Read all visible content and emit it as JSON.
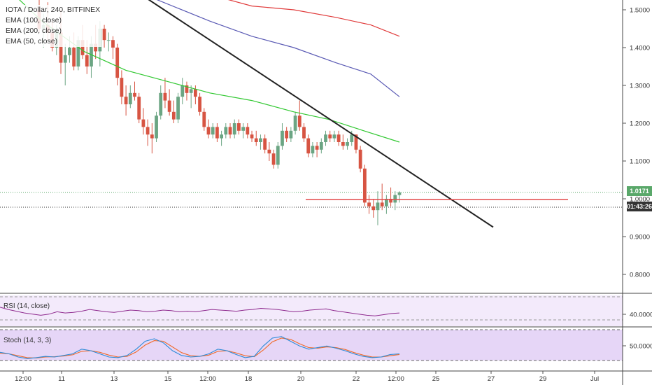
{
  "legend": {
    "symbol_line": "IOTA / Dollar, 240, BITFINEX",
    "ema100": "EMA (100, close)",
    "ema200": "EMA (200, close)",
    "ema50": "EMA (50, close)"
  },
  "indicators": {
    "rsi_label": "RSI (14, close)",
    "stoch_label": "Stoch (14, 3, 3)"
  },
  "tags": {
    "price": "1.0171",
    "countdown": "01:43:26"
  },
  "colors": {
    "up_candle": "#6ba583",
    "down_candle": "#d75442",
    "ema50": "#31c831",
    "ema100": "#5a5ab4",
    "ema200": "#e03a3a",
    "trendline": "#222222",
    "support": "#e34a4a",
    "rsi_line": "#8e2a8e",
    "stoch_k": "#2a8ad8",
    "stoch_d": "#f06a2a",
    "band": "#e9d9f7",
    "tag_green": "#5aa86a",
    "tag_dark": "#333333"
  },
  "chart_data": {
    "type": "candlestick",
    "title": "IOTA / Dollar, 240, BITFINEX",
    "y_axis": {
      "ticks": [
        1.5,
        1.4,
        1.3,
        1.2,
        1.1,
        1.0,
        0.9,
        0.8
      ],
      "tick_labels": [
        "1.5000",
        "1.4000",
        "1.3000",
        "1.2000",
        "1.1000",
        "1.0000",
        "0.9000",
        "0.8000"
      ],
      "range": [
        0.71,
        1.53
      ]
    },
    "x_axis": {
      "labels": [
        "12:00",
        "11",
        "13",
        "15",
        "12:00",
        "18",
        "20",
        "22",
        "12:00",
        "25",
        "27",
        "29",
        "Jul"
      ]
    },
    "candles": [
      [
        1.5,
        1.54,
        1.44,
        1.45
      ],
      [
        1.45,
        1.49,
        1.4,
        1.46
      ],
      [
        1.46,
        1.52,
        1.42,
        1.44
      ],
      [
        1.44,
        1.47,
        1.39,
        1.4
      ],
      [
        1.4,
        1.46,
        1.38,
        1.44
      ],
      [
        1.44,
        1.5,
        1.33,
        1.36
      ],
      [
        1.36,
        1.41,
        1.3,
        1.38
      ],
      [
        1.38,
        1.43,
        1.36,
        1.4
      ],
      [
        1.4,
        1.44,
        1.34,
        1.35
      ],
      [
        1.35,
        1.43,
        1.34,
        1.42
      ],
      [
        1.42,
        1.46,
        1.37,
        1.38
      ],
      [
        1.38,
        1.42,
        1.33,
        1.35
      ],
      [
        1.35,
        1.43,
        1.32,
        1.41
      ],
      [
        1.41,
        1.46,
        1.37,
        1.39
      ],
      [
        1.39,
        1.47,
        1.35,
        1.45
      ],
      [
        1.45,
        1.46,
        1.4,
        1.42
      ],
      [
        1.42,
        1.44,
        1.39,
        1.42
      ],
      [
        1.42,
        1.43,
        1.37,
        1.4
      ],
      [
        1.4,
        1.41,
        1.3,
        1.32
      ],
      [
        1.32,
        1.34,
        1.25,
        1.27
      ],
      [
        1.27,
        1.3,
        1.22,
        1.25
      ],
      [
        1.25,
        1.3,
        1.24,
        1.28
      ],
      [
        1.28,
        1.31,
        1.26,
        1.27
      ],
      [
        1.27,
        1.28,
        1.2,
        1.21
      ],
      [
        1.21,
        1.24,
        1.17,
        1.19
      ],
      [
        1.19,
        1.21,
        1.14,
        1.17
      ],
      [
        1.17,
        1.2,
        1.12,
        1.16
      ],
      [
        1.16,
        1.23,
        1.15,
        1.22
      ],
      [
        1.22,
        1.3,
        1.21,
        1.28
      ],
      [
        1.28,
        1.32,
        1.24,
        1.26
      ],
      [
        1.26,
        1.29,
        1.22,
        1.23
      ],
      [
        1.23,
        1.26,
        1.2,
        1.21
      ],
      [
        1.21,
        1.28,
        1.2,
        1.27
      ],
      [
        1.27,
        1.32,
        1.25,
        1.3
      ],
      [
        1.3,
        1.31,
        1.26,
        1.28
      ],
      [
        1.28,
        1.3,
        1.24,
        1.29
      ],
      [
        1.29,
        1.3,
        1.25,
        1.27
      ],
      [
        1.27,
        1.28,
        1.22,
        1.23
      ],
      [
        1.23,
        1.24,
        1.18,
        1.19
      ],
      [
        1.19,
        1.21,
        1.16,
        1.17
      ],
      [
        1.17,
        1.2,
        1.16,
        1.19
      ],
      [
        1.19,
        1.2,
        1.15,
        1.16
      ],
      [
        1.16,
        1.18,
        1.14,
        1.17
      ],
      [
        1.17,
        1.2,
        1.16,
        1.19
      ],
      [
        1.19,
        1.2,
        1.16,
        1.17
      ],
      [
        1.17,
        1.21,
        1.16,
        1.2
      ],
      [
        1.2,
        1.21,
        1.17,
        1.18
      ],
      [
        1.18,
        1.2,
        1.16,
        1.19
      ],
      [
        1.19,
        1.2,
        1.16,
        1.17
      ],
      [
        1.17,
        1.18,
        1.15,
        1.16
      ],
      [
        1.16,
        1.18,
        1.14,
        1.15
      ],
      [
        1.15,
        1.17,
        1.13,
        1.16
      ],
      [
        1.16,
        1.17,
        1.12,
        1.13
      ],
      [
        1.13,
        1.15,
        1.1,
        1.12
      ],
      [
        1.12,
        1.13,
        1.08,
        1.09
      ],
      [
        1.09,
        1.15,
        1.08,
        1.14
      ],
      [
        1.14,
        1.2,
        1.13,
        1.18
      ],
      [
        1.18,
        1.19,
        1.15,
        1.16
      ],
      [
        1.16,
        1.19,
        1.15,
        1.18
      ],
      [
        1.18,
        1.23,
        1.17,
        1.22
      ],
      [
        1.22,
        1.26,
        1.18,
        1.19
      ],
      [
        1.19,
        1.2,
        1.15,
        1.16
      ],
      [
        1.16,
        1.17,
        1.11,
        1.12
      ],
      [
        1.12,
        1.15,
        1.11,
        1.14
      ],
      [
        1.14,
        1.15,
        1.11,
        1.13
      ],
      [
        1.13,
        1.16,
        1.12,
        1.15
      ],
      [
        1.15,
        1.18,
        1.14,
        1.17
      ],
      [
        1.17,
        1.18,
        1.15,
        1.16
      ],
      [
        1.16,
        1.18,
        1.15,
        1.17
      ],
      [
        1.17,
        1.18,
        1.14,
        1.15
      ],
      [
        1.15,
        1.17,
        1.13,
        1.14
      ],
      [
        1.14,
        1.16,
        1.13,
        1.15
      ],
      [
        1.15,
        1.18,
        1.14,
        1.17
      ],
      [
        1.17,
        1.17,
        1.12,
        1.13
      ],
      [
        1.13,
        1.14,
        1.07,
        1.08
      ],
      [
        1.08,
        1.09,
        0.98,
        0.99
      ],
      [
        0.99,
        1.01,
        0.96,
        0.98
      ],
      [
        0.98,
        1.0,
        0.95,
        0.97
      ],
      [
        0.97,
        1.02,
        0.93,
        0.99
      ],
      [
        0.99,
        1.04,
        0.97,
        0.98
      ],
      [
        0.98,
        1.01,
        0.96,
        1.0
      ],
      [
        1.0,
        1.03,
        0.98,
        0.99
      ],
      [
        0.99,
        1.02,
        0.97,
        1.01
      ],
      [
        1.01,
        1.02,
        0.99,
        1.017
      ]
    ],
    "ema50": [
      [
        0,
        1.62
      ],
      [
        20,
        1.54
      ],
      [
        60,
        1.47
      ],
      [
        120,
        1.39
      ],
      [
        180,
        1.34
      ],
      [
        240,
        1.31
      ],
      [
        300,
        1.28
      ],
      [
        360,
        1.26
      ],
      [
        420,
        1.23
      ],
      [
        470,
        1.21
      ],
      [
        520,
        1.18
      ],
      [
        571,
        1.15
      ]
    ],
    "ema100": [
      [
        220,
        1.53
      ],
      [
        300,
        1.47
      ],
      [
        360,
        1.43
      ],
      [
        420,
        1.4
      ],
      [
        480,
        1.36
      ],
      [
        530,
        1.33
      ],
      [
        571,
        1.27
      ]
    ],
    "ema200": [
      [
        300,
        1.54
      ],
      [
        360,
        1.51
      ],
      [
        420,
        1.5
      ],
      [
        480,
        1.48
      ],
      [
        530,
        1.46
      ],
      [
        571,
        1.43
      ]
    ],
    "trendline": {
      "from": [
        210,
        1.53
      ],
      "to": [
        705,
        0.925
      ]
    },
    "support_line": {
      "from": [
        437,
        0.998
      ],
      "to": [
        812,
        0.998
      ]
    },
    "current_price": 1.0171,
    "rsi": {
      "tick_label": "40.0000",
      "values": [
        52,
        48,
        45,
        42,
        40,
        38,
        40,
        44,
        42,
        43,
        45,
        48,
        46,
        44,
        43,
        45,
        47,
        46,
        44,
        45,
        47,
        46,
        44,
        45,
        44,
        46,
        48,
        47,
        46,
        45,
        47,
        48,
        50,
        49,
        48,
        46,
        44,
        45,
        47,
        48,
        49,
        46,
        44,
        42,
        40,
        38,
        37,
        39,
        41,
        42
      ]
    },
    "stoch": {
      "tick_label": "50.0000",
      "k": [
        35,
        30,
        20,
        15,
        18,
        22,
        20,
        25,
        30,
        45,
        40,
        30,
        20,
        18,
        25,
        45,
        70,
        78,
        65,
        40,
        25,
        20,
        22,
        30,
        45,
        40,
        28,
        18,
        22,
        55,
        80,
        85,
        70,
        55,
        45,
        50,
        55,
        48,
        40,
        30,
        22,
        18,
        20,
        28,
        30
      ],
      "d": [
        32,
        30,
        24,
        18,
        17,
        20,
        21,
        23,
        27,
        38,
        40,
        35,
        26,
        20,
        22,
        36,
        58,
        72,
        70,
        52,
        34,
        24,
        22,
        26,
        38,
        40,
        33,
        24,
        21,
        42,
        68,
        80,
        76,
        62,
        50,
        48,
        52,
        50,
        44,
        34,
        26,
        20,
        20,
        24,
        28
      ]
    }
  }
}
